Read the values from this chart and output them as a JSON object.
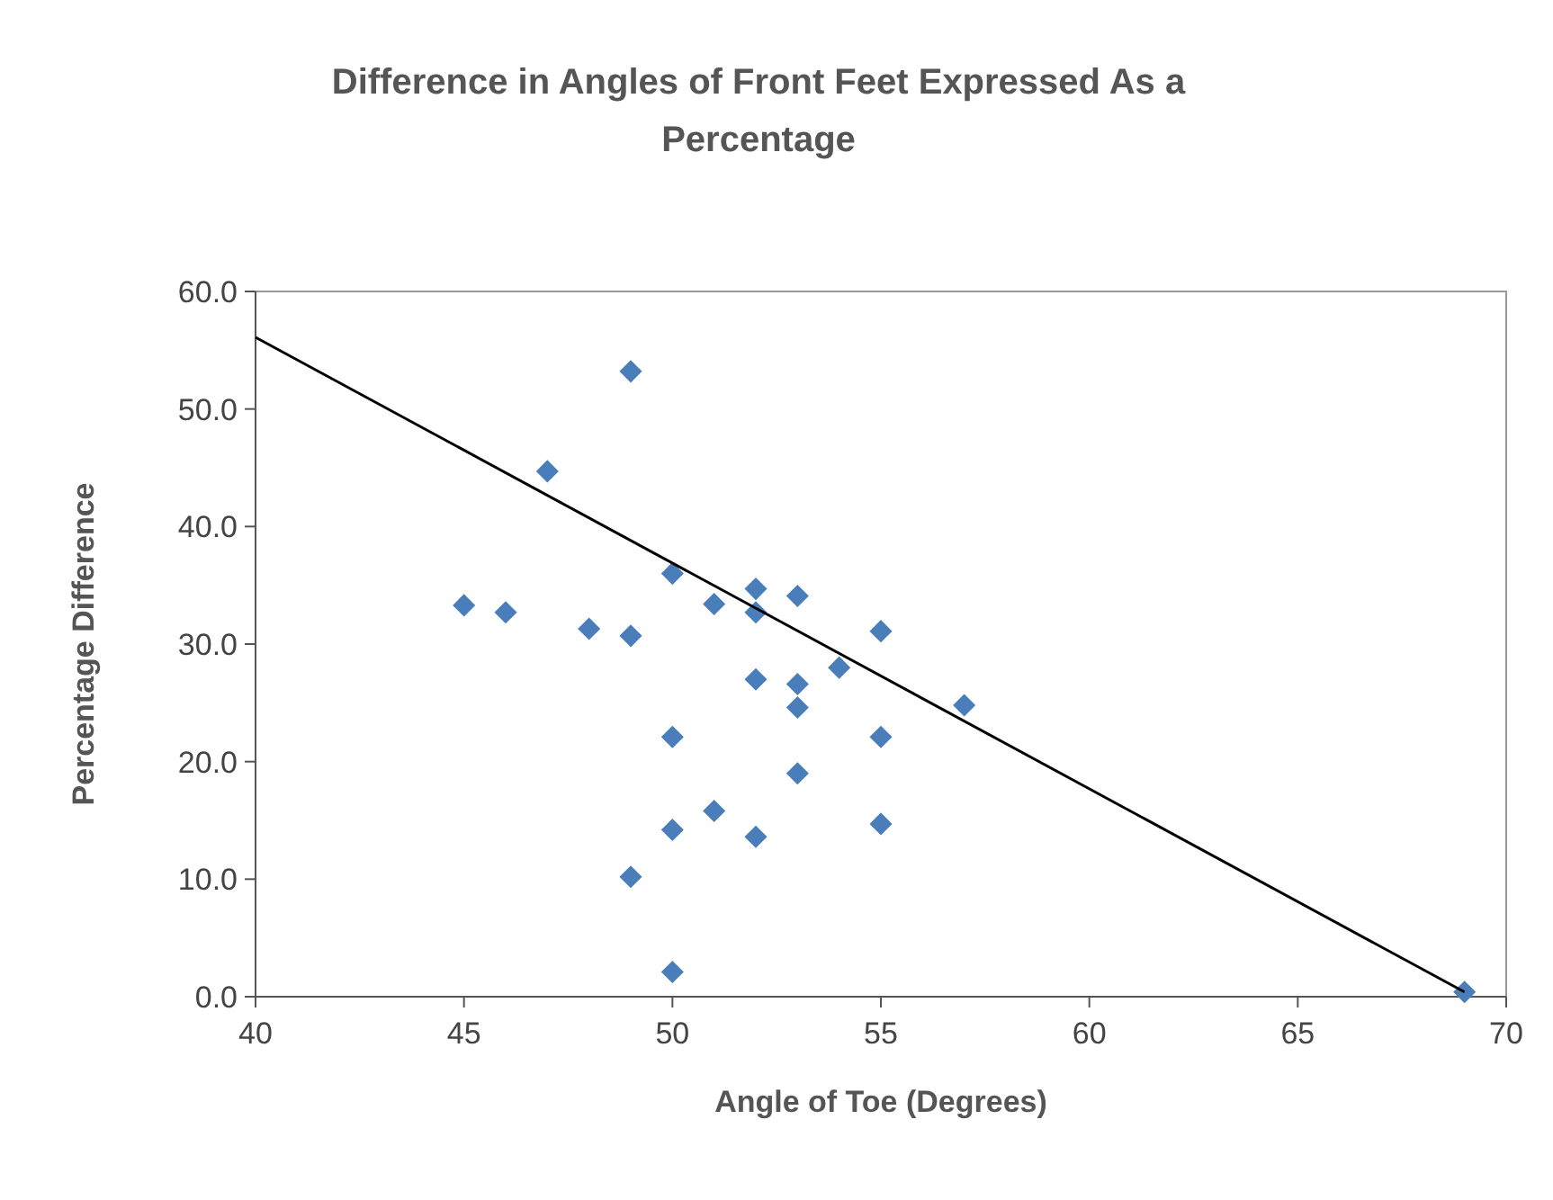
{
  "chart_data": {
    "type": "scatter",
    "title": "Difference in Angles of Front Feet Expressed As a Percentage",
    "xlabel": "Angle of Toe (Degrees)",
    "ylabel": "Percentage Difference",
    "xlim": [
      40,
      70
    ],
    "xticks": [
      40,
      45,
      50,
      55,
      60,
      65,
      70
    ],
    "ylim": [
      0,
      60
    ],
    "yticks": [
      {
        "value": 0,
        "label": "0.0"
      },
      {
        "value": 10,
        "label": "10.0"
      },
      {
        "value": 20,
        "label": "20.0"
      },
      {
        "value": 30,
        "label": "30.0"
      },
      {
        "value": 40,
        "label": "40.0"
      },
      {
        "value": 50,
        "label": "50.0"
      },
      {
        "value": 60,
        "label": "60.0"
      }
    ],
    "grid": false,
    "marker": "diamond",
    "series": [
      {
        "color": "#4a7ebb",
        "x": [
          45,
          46,
          47,
          48,
          49,
          49,
          49,
          50,
          50,
          50,
          50,
          51,
          51,
          52,
          52,
          52,
          52,
          53,
          53,
          53,
          53,
          54,
          55,
          55,
          55,
          57,
          69
        ],
        "values": [
          33.3,
          32.7,
          44.7,
          31.3,
          30.7,
          53.2,
          10.2,
          36.0,
          22.1,
          14.2,
          2.1,
          33.4,
          15.8,
          34.7,
          32.7,
          27.0,
          13.6,
          34.1,
          26.6,
          24.6,
          19.0,
          28.0,
          31.1,
          22.1,
          14.7,
          24.8,
          0.4
        ]
      },
      {
        "type": "line",
        "color": "#000000",
        "marker": "none",
        "line_style": "solid",
        "x": [
          40,
          69
        ],
        "values": [
          56.1,
          0.4
        ]
      }
    ]
  }
}
